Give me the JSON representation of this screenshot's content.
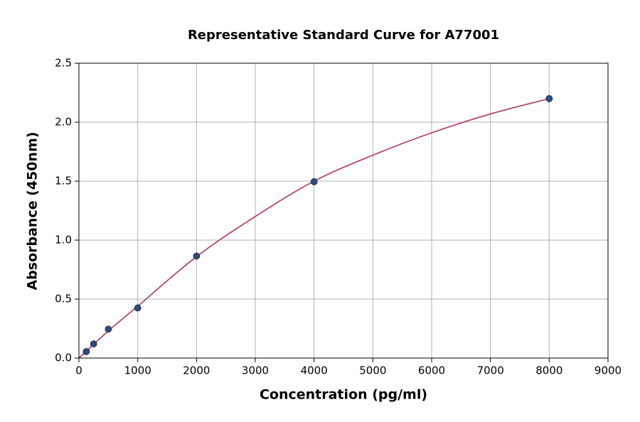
{
  "chart_data": {
    "type": "scatter",
    "title": "Representative Standard Curve for A77001",
    "xlabel": "Concentration (pg/ml)",
    "ylabel": "Absorbance (450nm)",
    "x": [
      125,
      250,
      500,
      1000,
      2000,
      4000,
      8000
    ],
    "y": [
      0.055,
      0.12,
      0.245,
      0.425,
      0.865,
      1.495,
      2.2
    ],
    "color": "#2f4b7c",
    "curve": {
      "color": "#b5476b",
      "x": [
        0,
        500,
        1000,
        2000,
        3000,
        4000,
        5000,
        6000,
        7000,
        8000
      ],
      "y": [
        0,
        0.23,
        0.44,
        0.86,
        1.2,
        1.5,
        1.72,
        1.91,
        2.07,
        2.2
      ]
    },
    "xlim": [
      0,
      9000
    ],
    "ylim": [
      0,
      2.5
    ],
    "xticks": [
      0,
      1000,
      2000,
      3000,
      4000,
      5000,
      6000,
      7000,
      8000,
      9000
    ],
    "yticks": [
      {
        "value": 0,
        "label": "0.0"
      },
      0.5,
      {
        "value": 1,
        "label": "1.0"
      },
      1.5,
      {
        "value": 2,
        "label": "2.0"
      },
      2.5
    ],
    "grid": true
  }
}
